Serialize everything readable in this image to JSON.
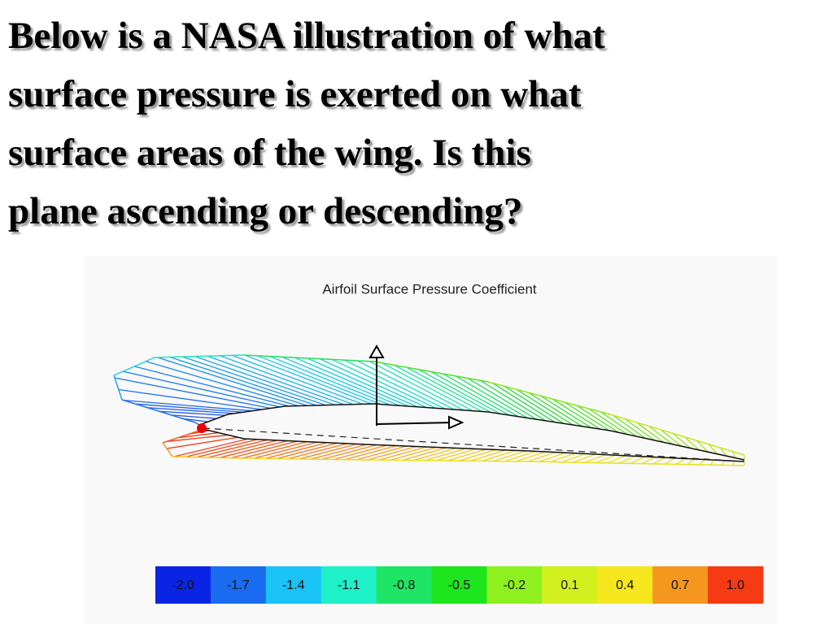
{
  "heading": {
    "lines": [
      "Below is a NASA illustration of what",
      "surface pressure is exerted on what",
      "surface areas of the wing.  Is this",
      "plane ascending or descending?"
    ]
  },
  "figure": {
    "title": "Airfoil Surface Pressure Coefficient",
    "legend": [
      {
        "label": "-2.0",
        "color": "#0a24e6"
      },
      {
        "label": "-1.7",
        "color": "#1a6cf0"
      },
      {
        "label": "-1.4",
        "color": "#19c3f5"
      },
      {
        "label": "-1.1",
        "color": "#1ef0c8"
      },
      {
        "label": "-0.8",
        "color": "#1ee664"
      },
      {
        "label": "-0.5",
        "color": "#1ee61e"
      },
      {
        "label": "-0.2",
        "color": "#8ef01e"
      },
      {
        "label": "0.1",
        "color": "#d2f01e"
      },
      {
        "label": "0.4",
        "color": "#f5e61e"
      },
      {
        "label": "0.7",
        "color": "#f5961e"
      },
      {
        "label": "1.0",
        "color": "#f53a14"
      }
    ]
  }
}
